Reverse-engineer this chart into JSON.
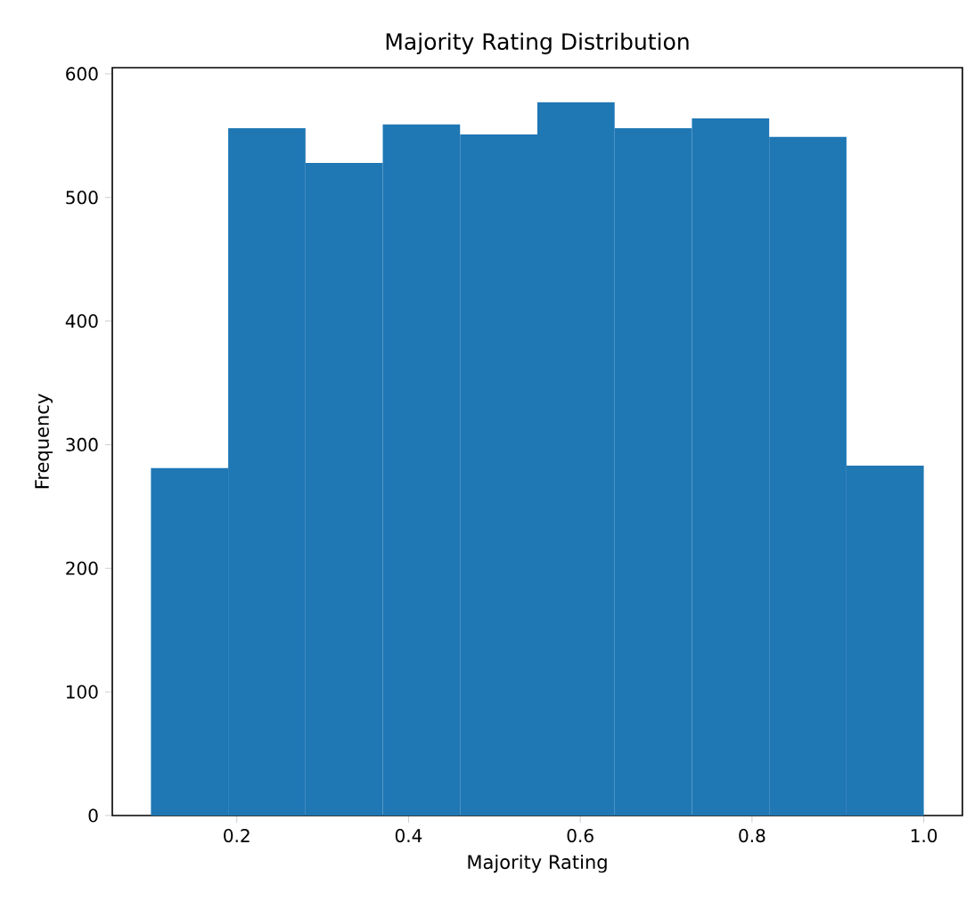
{
  "chart_data": {
    "type": "histogram",
    "title": "Majority Rating Distribution",
    "xlabel": "Majority Rating",
    "ylabel": "Frequency",
    "bins": [
      0.1,
      0.19,
      0.28,
      0.37,
      0.46,
      0.55,
      0.64,
      0.73,
      0.82,
      0.91,
      1.0
    ],
    "values": [
      281,
      556,
      528,
      559,
      551,
      577,
      556,
      564,
      549,
      283
    ],
    "color": "#1f77b4",
    "xlim": [
      0.055,
      1.045
    ],
    "ylim": [
      0,
      605
    ],
    "xticks": [
      0.2,
      0.4,
      0.6,
      0.8,
      {
        "value": 1.0,
        "label": "1.0"
      }
    ],
    "yticks": [
      0,
      100,
      200,
      300,
      400,
      500,
      600
    ]
  }
}
